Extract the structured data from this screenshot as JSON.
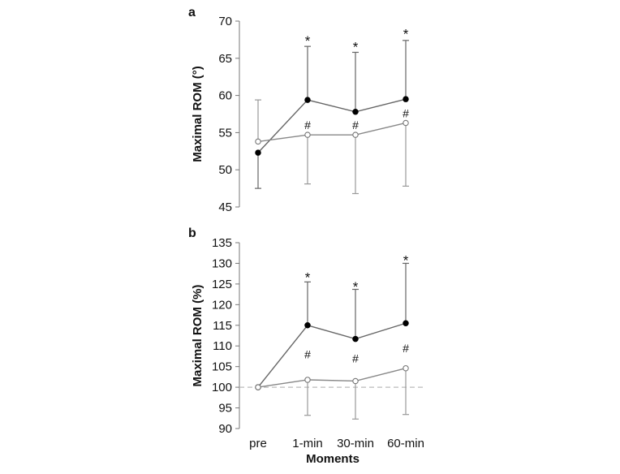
{
  "chart_data": [
    {
      "type": "line",
      "panel_label": "a",
      "ylabel": "Maximal ROM (°)",
      "xlabel": "",
      "categories": [
        "pre",
        "1-min",
        "30-min",
        "60-min"
      ],
      "show_category_labels": false,
      "ylim": [
        45,
        70
      ],
      "yticks": [
        45,
        50,
        55,
        60,
        65,
        70
      ],
      "series": [
        {
          "marker": "filled",
          "color": "#000000",
          "line_color": "#666666",
          "values": [
            52.3,
            59.4,
            57.8,
            59.5
          ],
          "error_up": [
            0,
            7.2,
            8.0,
            7.9
          ],
          "error_down": [
            4.8,
            0,
            0,
            0
          ]
        },
        {
          "marker": "open",
          "color": "#ffffff",
          "line_color": "#888888",
          "values": [
            53.8,
            54.7,
            54.7,
            56.3
          ],
          "error_up": [
            5.6,
            0,
            0,
            0
          ],
          "error_down": [
            0,
            6.6,
            7.9,
            8.5
          ]
        }
      ],
      "annotations": [
        {
          "category": "1-min",
          "text": "*",
          "y": 67.6
        },
        {
          "category": "30-min",
          "text": "*",
          "y": 66.8
        },
        {
          "category": "60-min",
          "text": "*",
          "y": 68.5
        },
        {
          "category": "1-min",
          "text": "#",
          "y": 56.0
        },
        {
          "category": "30-min",
          "text": "#",
          "y": 56.0
        },
        {
          "category": "60-min",
          "text": "#",
          "y": 57.6
        }
      ],
      "reference_line": null
    },
    {
      "type": "line",
      "panel_label": "b",
      "ylabel": "Maximal ROM (%)",
      "xlabel": "Moments",
      "categories": [
        "pre",
        "1-min",
        "30-min",
        "60-min"
      ],
      "show_category_labels": true,
      "ylim": [
        90,
        135
      ],
      "yticks": [
        90,
        95,
        100,
        105,
        110,
        115,
        120,
        125,
        130,
        135
      ],
      "series": [
        {
          "marker": "filled",
          "color": "#000000",
          "line_color": "#666666",
          "values": [
            100,
            115.0,
            111.7,
            115.5
          ],
          "error_up": [
            0,
            10.5,
            12.0,
            14.5
          ],
          "error_down": [
            0,
            0,
            0,
            0
          ]
        },
        {
          "marker": "open",
          "color": "#ffffff",
          "line_color": "#888888",
          "values": [
            100,
            101.8,
            101.5,
            104.6
          ],
          "error_up": [
            0,
            0,
            0,
            0
          ],
          "error_down": [
            0,
            8.6,
            9.2,
            11.2
          ]
        }
      ],
      "annotations": [
        {
          "category": "1-min",
          "text": "*",
          "y": 127.0
        },
        {
          "category": "30-min",
          "text": "*",
          "y": 124.8
        },
        {
          "category": "60-min",
          "text": "*",
          "y": 131.2
        },
        {
          "category": "1-min",
          "text": "#",
          "y": 108.0
        },
        {
          "category": "30-min",
          "text": "#",
          "y": 107.0
        },
        {
          "category": "60-min",
          "text": "#",
          "y": 109.5
        }
      ],
      "reference_line": {
        "y": 100,
        "style": "dashed",
        "color": "#bbbbbb"
      }
    }
  ]
}
